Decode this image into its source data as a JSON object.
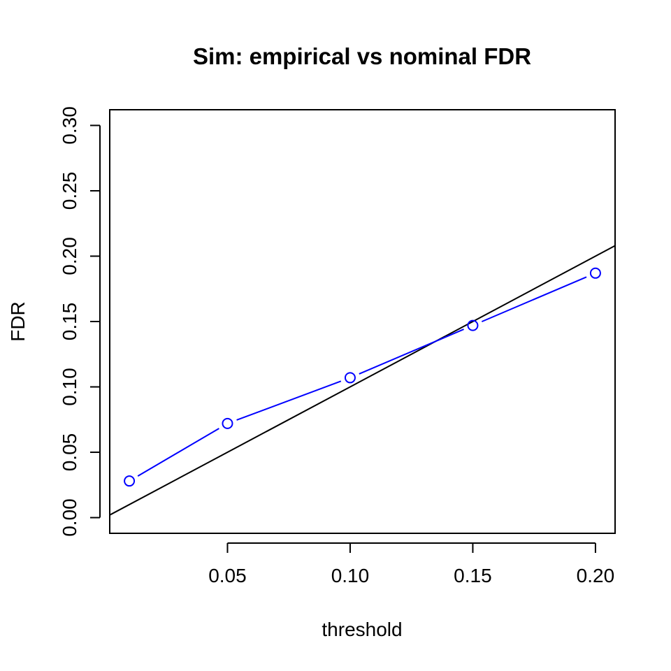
{
  "chart_data": {
    "type": "line",
    "title": "Sim: empirical vs nominal FDR",
    "xlabel": "threshold",
    "ylabel": "FDR",
    "xlim": [
      0.002,
      0.208
    ],
    "ylim": [
      -0.012,
      0.312
    ],
    "x_ticks": [
      {
        "value": 0.05,
        "label": "0.05"
      },
      {
        "value": 0.1,
        "label": "0.10"
      },
      {
        "value": 0.15,
        "label": "0.15"
      },
      {
        "value": 0.2,
        "label": "0.20"
      }
    ],
    "y_ticks": [
      {
        "value": 0.0,
        "label": "0.00"
      },
      {
        "value": 0.05,
        "label": "0.05"
      },
      {
        "value": 0.1,
        "label": "0.10"
      },
      {
        "value": 0.15,
        "label": "0.15"
      },
      {
        "value": 0.2,
        "label": "0.20"
      },
      {
        "value": 0.25,
        "label": "0.25"
      },
      {
        "value": 0.3,
        "label": "0.30"
      }
    ],
    "series": [
      {
        "type": "line+points",
        "marker": "open-circle",
        "color": "#0000ff",
        "x": [
          0.01,
          0.05,
          0.1,
          0.15,
          0.2
        ],
        "y": [
          0.028,
          0.072,
          0.107,
          0.147,
          0.187
        ]
      }
    ],
    "reference_line": {
      "type": "identity",
      "intercept": 0,
      "slope": 1,
      "color": "#000000"
    },
    "grid": false,
    "legend": "none"
  }
}
